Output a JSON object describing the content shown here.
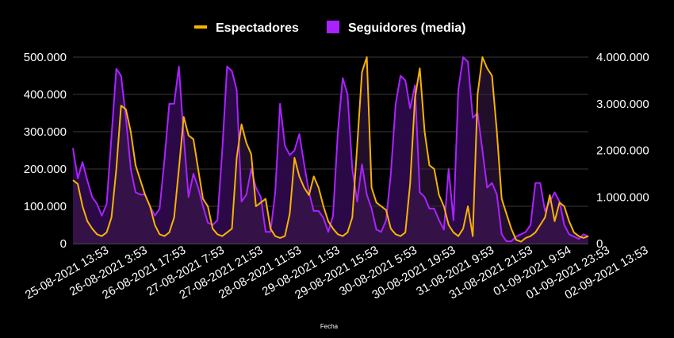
{
  "chart_data": {
    "type": "area",
    "xlabel": "Fecha",
    "legend_position": "top",
    "grid": true,
    "x_tick_labels": [
      "25-08-2021 13:53",
      "26-08-2021 3:53",
      "26-08-2021 17:53",
      "27-08-2021 7:53",
      "27-08-2021 21:53",
      "28-08-2021 11:53",
      "29-08-2021 1:53",
      "29-08-2021 15:53",
      "30-08-2021 5:53",
      "30-08-2021 19:53",
      "31-08-2021 9:53",
      "31-08-2021 21:53",
      "01-09-2021 9:54",
      "01-09-2021 23:53",
      "02-09-2021 13:53"
    ],
    "y_left": {
      "ticks": [
        "0",
        "100.000",
        "200.000",
        "300.000",
        "400.000",
        "500.000"
      ],
      "range": [
        0,
        500000
      ]
    },
    "y_right": {
      "ticks": [
        "0",
        "1.000.000",
        "2.000.000",
        "3.000.000",
        "4.000.000"
      ],
      "range": [
        0,
        4000000
      ]
    },
    "series": [
      {
        "name": "Espectadores",
        "axis": "left",
        "color": "#f5b400",
        "values": [
          170000,
          160000,
          100000,
          60000,
          40000,
          25000,
          20000,
          30000,
          70000,
          200000,
          370000,
          360000,
          300000,
          210000,
          170000,
          130000,
          100000,
          50000,
          25000,
          20000,
          30000,
          70000,
          200000,
          340000,
          290000,
          280000,
          200000,
          120000,
          100000,
          40000,
          25000,
          20000,
          30000,
          40000,
          230000,
          320000,
          270000,
          240000,
          100000,
          110000,
          120000,
          40000,
          20000,
          15000,
          20000,
          80000,
          230000,
          180000,
          150000,
          130000,
          180000,
          150000,
          100000,
          60000,
          40000,
          25000,
          20000,
          30000,
          70000,
          260000,
          460000,
          500000,
          150000,
          110000,
          100000,
          90000,
          40000,
          25000,
          20000,
          30000,
          160000,
          390000,
          470000,
          300000,
          210000,
          200000,
          130000,
          100000,
          50000,
          30000,
          20000,
          40000,
          100000,
          20000,
          400000,
          500000,
          470000,
          450000,
          300000,
          120000,
          80000,
          40000,
          10000,
          5000,
          15000,
          20000,
          30000,
          50000,
          70000,
          130000,
          60000,
          110000,
          100000,
          60000,
          30000,
          20000,
          15000,
          20000
        ]
      },
      {
        "name": "Seguidores (media)",
        "axis": "right",
        "color": "#aa22ff",
        "values": [
          2050000,
          1400000,
          1750000,
          1350000,
          1000000,
          850000,
          600000,
          850000,
          2300000,
          3750000,
          3600000,
          2700000,
          1600000,
          1100000,
          1050000,
          1050000,
          800000,
          600000,
          750000,
          1800000,
          3000000,
          3000000,
          3800000,
          2300000,
          1000000,
          1500000,
          1200000,
          800000,
          450000,
          400000,
          500000,
          2000000,
          3800000,
          3700000,
          3300000,
          900000,
          1050000,
          1600000,
          1200000,
          1000000,
          250000,
          250000,
          1100000,
          3000000,
          2100000,
          1900000,
          2000000,
          2350000,
          1700000,
          1100000,
          700000,
          700000,
          550000,
          250000,
          600000,
          2400000,
          3550000,
          3200000,
          1600000,
          900000,
          1700000,
          1050000,
          750000,
          300000,
          250000,
          500000,
          1500000,
          3000000,
          3600000,
          3500000,
          2900000,
          3400000,
          1100000,
          1000000,
          750000,
          750000,
          500000,
          300000,
          1600000,
          500000,
          3300000,
          4000000,
          3900000,
          2700000,
          2800000,
          2000000,
          1200000,
          1300000,
          1050000,
          200000,
          50000,
          50000,
          150000,
          200000,
          250000,
          400000,
          1300000,
          1300000,
          700000,
          900000,
          1100000,
          900000,
          400000,
          200000,
          150000,
          100000,
          200000,
          150000
        ]
      }
    ]
  }
}
